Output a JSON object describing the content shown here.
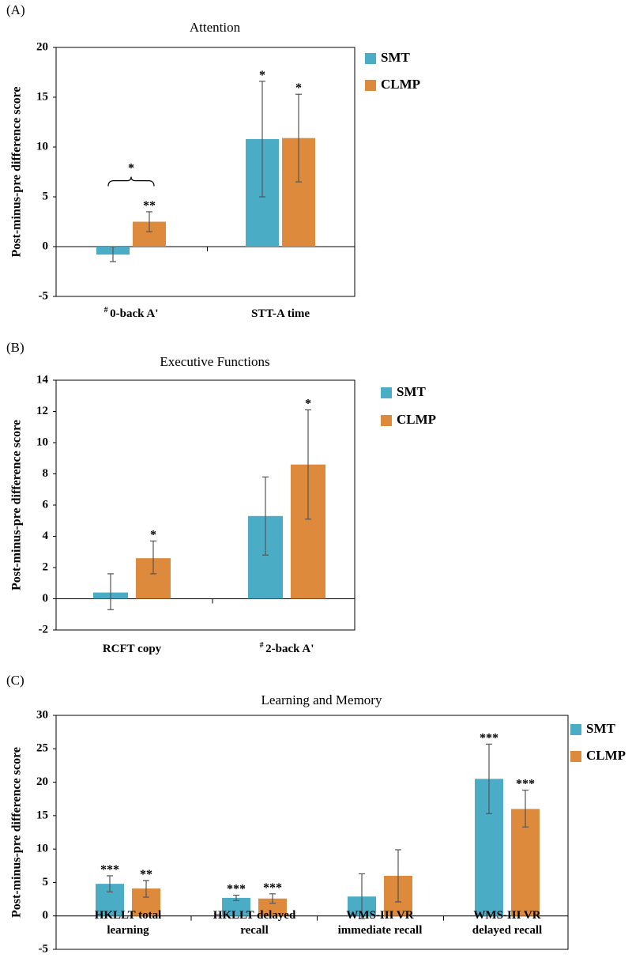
{
  "colors": {
    "SMT": "#4bacc6",
    "CLMP": "#dd8a3d",
    "errorbar": "#555555"
  },
  "legend_icon": "square-swatch",
  "chart_data": [
    {
      "panel": "(A)",
      "type": "bar",
      "title": "Attention",
      "ylabel": "Post-minus-pre difference score",
      "xlabel": "",
      "ylim": [
        -5,
        20
      ],
      "yticks": [
        -5,
        0,
        5,
        10,
        15,
        20
      ],
      "categories": [
        {
          "prefix": "#",
          "lines": [
            "0-back A'"
          ]
        },
        {
          "prefix": "",
          "lines": [
            "STT-A time"
          ]
        }
      ],
      "series": [
        {
          "name": "SMT",
          "values": [
            -0.8,
            10.8
          ],
          "err_low": [
            -1.5,
            5.0
          ],
          "err_high": [
            0.0,
            16.6
          ],
          "sig": [
            "",
            "*"
          ]
        },
        {
          "name": "CLMP",
          "values": [
            2.5,
            10.9
          ],
          "err_low": [
            1.5,
            6.5
          ],
          "err_high": [
            3.5,
            15.3
          ],
          "sig": [
            "**",
            "*"
          ]
        }
      ],
      "brackets": [
        {
          "category": 0,
          "label": "*",
          "y": 9.0
        }
      ],
      "legend": "right"
    },
    {
      "panel": "(B)",
      "type": "bar",
      "title": "Executive Functions",
      "ylabel": "Post-minus-pre difference score",
      "xlabel": "",
      "ylim": [
        -2,
        14
      ],
      "yticks": [
        -2,
        0,
        2,
        4,
        6,
        8,
        10,
        12,
        14
      ],
      "categories": [
        {
          "prefix": "",
          "lines": [
            "RCFT copy"
          ]
        },
        {
          "prefix": "#",
          "lines": [
            "2-back A'"
          ]
        }
      ],
      "series": [
        {
          "name": "SMT",
          "values": [
            0.4,
            5.3
          ],
          "err_low": [
            -0.7,
            2.8
          ],
          "err_high": [
            1.6,
            7.8
          ],
          "sig": [
            "",
            ""
          ]
        },
        {
          "name": "CLMP",
          "values": [
            2.6,
            8.6
          ],
          "err_low": [
            1.6,
            5.1
          ],
          "err_high": [
            3.7,
            12.1
          ],
          "sig": [
            "*",
            "*"
          ]
        }
      ],
      "brackets": [],
      "legend": "right"
    },
    {
      "panel": "(C)",
      "type": "bar",
      "title": "Learning and Memory",
      "ylabel": "Post-minus-pre difference score",
      "xlabel": "",
      "ylim": [
        -5,
        30
      ],
      "yticks": [
        -5,
        0,
        5,
        10,
        15,
        20,
        25,
        30
      ],
      "categories": [
        {
          "prefix": "",
          "lines": [
            "HKLLT total",
            "learning"
          ]
        },
        {
          "prefix": "",
          "lines": [
            "HKLLT delayed",
            "recall"
          ]
        },
        {
          "prefix": "",
          "lines": [
            "WMS-III VR",
            "immediate recall"
          ]
        },
        {
          "prefix": "",
          "lines": [
            "WMS-III VR",
            "delayed recall"
          ]
        }
      ],
      "series": [
        {
          "name": "SMT",
          "values": [
            4.8,
            2.7,
            2.9,
            20.5
          ],
          "err_low": [
            3.6,
            2.3,
            -0.4,
            15.3
          ],
          "err_high": [
            6.0,
            3.1,
            6.3,
            25.7
          ],
          "sig": [
            "***",
            "***",
            "",
            "***"
          ]
        },
        {
          "name": "CLMP",
          "values": [
            4.1,
            2.6,
            6.0,
            16.0
          ],
          "err_low": [
            2.8,
            1.9,
            2.1,
            13.3
          ],
          "err_high": [
            5.3,
            3.3,
            9.9,
            18.8
          ],
          "sig": [
            "**",
            "***",
            "",
            "***"
          ]
        }
      ],
      "brackets": [],
      "legend": "right"
    }
  ]
}
